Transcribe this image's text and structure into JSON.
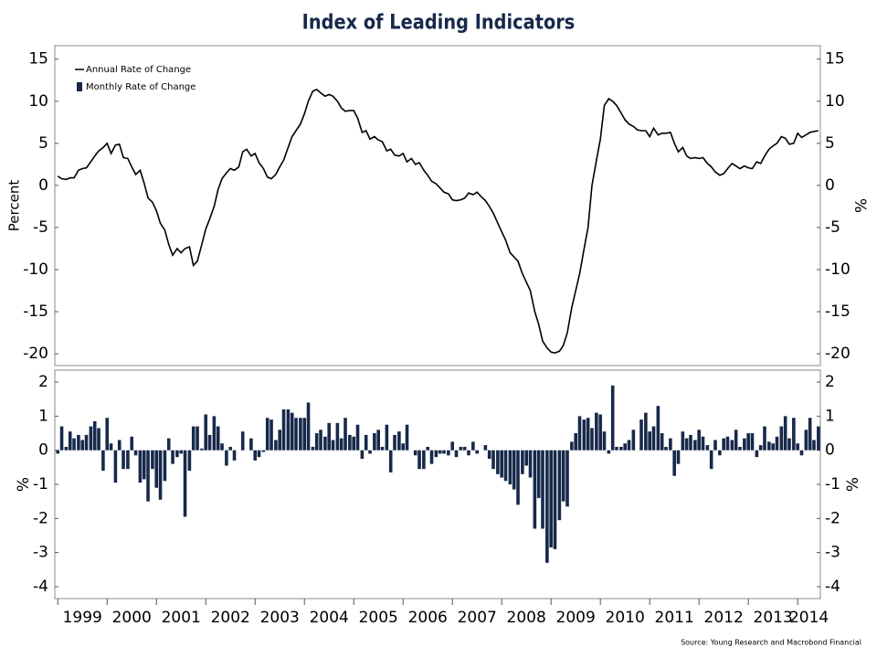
{
  "chart_data": [
    {
      "type": "line",
      "title": "Index of Leading Indicators",
      "y_label": "Percent",
      "y2_label": "%",
      "xlim": [
        1998.94,
        2014.46
      ],
      "ylim": [
        -21.4,
        16.6
      ],
      "yticks": [
        -20,
        -15,
        -10,
        -5,
        0,
        5,
        10,
        15
      ],
      "y2lim": [
        -21.4,
        16.6
      ],
      "y2ticks": [
        -20,
        -15,
        -10,
        -5,
        0,
        5,
        10,
        15
      ],
      "legend": "upper left",
      "grid": false,
      "x": [
        1999,
        1999.08,
        1999.17,
        1999.25,
        1999.33,
        1999.42,
        1999.5,
        1999.58,
        1999.67,
        1999.75,
        1999.83,
        1999.92,
        2000,
        2000.08,
        2000.17,
        2000.25,
        2000.33,
        2000.42,
        2000.5,
        2000.58,
        2000.67,
        2000.75,
        2000.83,
        2000.92,
        2001,
        2001.08,
        2001.17,
        2001.25,
        2001.33,
        2001.42,
        2001.5,
        2001.58,
        2001.67,
        2001.75,
        2001.83,
        2001.92,
        2002,
        2002.08,
        2002.17,
        2002.25,
        2002.33,
        2002.42,
        2002.5,
        2002.58,
        2002.67,
        2002.75,
        2002.83,
        2002.92,
        2003,
        2003.08,
        2003.17,
        2003.25,
        2003.33,
        2003.42,
        2003.5,
        2003.58,
        2003.67,
        2003.75,
        2003.83,
        2003.92,
        2004,
        2004.08,
        2004.17,
        2004.25,
        2004.33,
        2004.42,
        2004.5,
        2004.58,
        2004.67,
        2004.75,
        2004.83,
        2004.92,
        2005,
        2005.08,
        2005.17,
        2005.25,
        2005.33,
        2005.42,
        2005.5,
        2005.58,
        2005.67,
        2005.75,
        2005.83,
        2005.92,
        2006,
        2006.08,
        2006.17,
        2006.25,
        2006.33,
        2006.42,
        2006.5,
        2006.58,
        2006.67,
        2006.75,
        2006.83,
        2006.92,
        2007,
        2007.08,
        2007.17,
        2007.25,
        2007.33,
        2007.42,
        2007.5,
        2007.58,
        2007.67,
        2007.75,
        2007.83,
        2007.92,
        2008,
        2008.08,
        2008.17,
        2008.25,
        2008.33,
        2008.42,
        2008.5,
        2008.58,
        2008.67,
        2008.75,
        2008.83,
        2008.92,
        2009,
        2009.08,
        2009.17,
        2009.25,
        2009.33,
        2009.42,
        2009.5,
        2009.58,
        2009.67,
        2009.75,
        2009.83,
        2009.92,
        2010,
        2010.08,
        2010.17,
        2010.25,
        2010.33,
        2010.42,
        2010.5,
        2010.58,
        2010.67,
        2010.75,
        2010.83,
        2010.92,
        2011,
        2011.08,
        2011.17,
        2011.25,
        2011.33,
        2011.42,
        2011.5,
        2011.58,
        2011.67,
        2011.75,
        2011.83,
        2011.92,
        2012,
        2012.08,
        2012.17,
        2012.25,
        2012.33,
        2012.42,
        2012.5,
        2012.58,
        2012.67,
        2012.75,
        2012.83,
        2012.92,
        2013,
        2013.08,
        2013.17,
        2013.25,
        2013.33,
        2013.42,
        2013.5,
        2013.58,
        2013.67,
        2013.75,
        2013.83,
        2013.92,
        2014,
        2014.08,
        2014.17,
        2014.25,
        2014.33,
        2014.42
      ],
      "series": [
        {
          "name": "Annual Rate of Change",
          "color": "#000000",
          "values": [
            1.1,
            0.8,
            0.7,
            0.9,
            0.9,
            1.8,
            2.0,
            2.1,
            2.8,
            3.5,
            4.1,
            4.5,
            5.0,
            3.8,
            4.8,
            4.9,
            3.3,
            3.2,
            2.2,
            1.3,
            1.8,
            0.3,
            -1.5,
            -2.0,
            -3.0,
            -4.5,
            -5.3,
            -7.0,
            -8.3,
            -7.5,
            -8.0,
            -7.5,
            -7.3,
            -9.5,
            -9.0,
            -7.0,
            -5.2,
            -4.0,
            -2.5,
            -0.5,
            0.8,
            1.5,
            2.0,
            1.8,
            2.2,
            4.0,
            4.3,
            3.5,
            3.8,
            2.7,
            2.0,
            1.0,
            0.8,
            1.3,
            2.2,
            3.0,
            4.5,
            5.8,
            6.5,
            7.3,
            8.5,
            10.0,
            11.2,
            11.4,
            11.0,
            10.6,
            10.8,
            10.6,
            10.0,
            9.2,
            8.8,
            8.9,
            8.9,
            8.0,
            6.3,
            6.5,
            5.5,
            5.8,
            5.4,
            5.2,
            4.1,
            4.3,
            3.6,
            3.5,
            3.8,
            2.8,
            3.2,
            2.5,
            2.7,
            1.8,
            1.2,
            0.5,
            0.2,
            -0.3,
            -0.8,
            -1.0,
            -1.7,
            -1.8,
            -1.7,
            -1.5,
            -0.9,
            -1.1,
            -0.8,
            -1.3,
            -1.8,
            -2.5,
            -3.3,
            -4.5,
            -5.5,
            -6.5,
            -8.0,
            -8.5,
            -9.0,
            -10.5,
            -11.5,
            -12.5,
            -15.0,
            -16.5,
            -18.5,
            -19.3,
            -19.8,
            -19.9,
            -19.7,
            -19.0,
            -17.5,
            -14.5,
            -12.5,
            -10.5,
            -7.5,
            -5.0,
            0.0,
            3.0,
            5.5,
            9.5,
            10.3,
            10.0,
            9.5,
            8.6,
            7.8,
            7.3,
            7.0,
            6.6,
            6.5,
            6.5,
            5.8,
            6.8,
            6.0,
            6.2,
            6.2,
            6.3,
            5.0,
            4.0,
            4.5,
            3.5,
            3.2,
            3.3,
            3.2,
            3.3,
            2.6,
            2.2,
            1.6,
            1.2,
            1.4,
            2.0,
            2.6,
            2.3,
            2.0,
            2.3,
            2.1,
            2.0,
            2.8,
            2.6,
            3.5,
            4.3,
            4.7,
            5.0,
            5.8,
            5.6,
            4.9,
            5.0,
            6.2,
            5.7,
            6.0,
            6.3,
            6.4,
            6.5
          ]
        }
      ]
    },
    {
      "type": "bar",
      "y_label": "%",
      "y2_label": "%",
      "source": "Source: Young Research and Macrobond Financial",
      "xlim": [
        1998.94,
        2014.46
      ],
      "xticks": [
        1999,
        2000,
        2001,
        2002,
        2003,
        2004,
        2005,
        2006,
        2007,
        2008,
        2009,
        2010,
        2011,
        2012,
        2013,
        2014
      ],
      "ylim": [
        -4.35,
        2.35
      ],
      "yticks": [
        -4,
        -3,
        -2,
        -1,
        0,
        1,
        2
      ],
      "y2lim": [
        -4.35,
        2.35
      ],
      "y2ticks": [
        -4,
        -3,
        -2,
        -1,
        0,
        1,
        2
      ],
      "grid": false,
      "x": [
        1999,
        1999.08,
        1999.17,
        1999.25,
        1999.33,
        1999.42,
        1999.5,
        1999.58,
        1999.67,
        1999.75,
        1999.83,
        1999.92,
        2000,
        2000.08,
        2000.17,
        2000.25,
        2000.33,
        2000.42,
        2000.5,
        2000.58,
        2000.67,
        2000.75,
        2000.83,
        2000.92,
        2001,
        2001.08,
        2001.17,
        2001.25,
        2001.33,
        2001.42,
        2001.5,
        2001.58,
        2001.67,
        2001.75,
        2001.83,
        2001.92,
        2002,
        2002.08,
        2002.17,
        2002.25,
        2002.33,
        2002.42,
        2002.5,
        2002.58,
        2002.67,
        2002.75,
        2002.83,
        2002.92,
        2003,
        2003.08,
        2003.17,
        2003.25,
        2003.33,
        2003.42,
        2003.5,
        2003.58,
        2003.67,
        2003.75,
        2003.83,
        2003.92,
        2004,
        2004.08,
        2004.17,
        2004.25,
        2004.33,
        2004.42,
        2004.5,
        2004.58,
        2004.67,
        2004.75,
        2004.83,
        2004.92,
        2005,
        2005.08,
        2005.17,
        2005.25,
        2005.33,
        2005.42,
        2005.5,
        2005.58,
        2005.67,
        2005.75,
        2005.83,
        2005.92,
        2006,
        2006.08,
        2006.17,
        2006.25,
        2006.33,
        2006.42,
        2006.5,
        2006.58,
        2006.67,
        2006.75,
        2006.83,
        2006.92,
        2007,
        2007.08,
        2007.17,
        2007.25,
        2007.33,
        2007.42,
        2007.5,
        2007.58,
        2007.67,
        2007.75,
        2007.83,
        2007.92,
        2008,
        2008.08,
        2008.17,
        2008.25,
        2008.33,
        2008.42,
        2008.5,
        2008.58,
        2008.67,
        2008.75,
        2008.83,
        2008.92,
        2009,
        2009.08,
        2009.17,
        2009.25,
        2009.33,
        2009.42,
        2009.5,
        2009.58,
        2009.67,
        2009.75,
        2009.83,
        2009.92,
        2010,
        2010.08,
        2010.17,
        2010.25,
        2010.33,
        2010.42,
        2010.5,
        2010.58,
        2010.67,
        2010.75,
        2010.83,
        2010.92,
        2011,
        2011.08,
        2011.17,
        2011.25,
        2011.33,
        2011.42,
        2011.5,
        2011.58,
        2011.67,
        2011.75,
        2011.83,
        2011.92,
        2012,
        2012.08,
        2012.17,
        2012.25,
        2012.33,
        2012.42,
        2012.5,
        2012.58,
        2012.67,
        2012.75,
        2012.83,
        2012.92,
        2013,
        2013.08,
        2013.17,
        2013.25,
        2013.33,
        2013.42,
        2013.5,
        2013.58,
        2013.67,
        2013.75,
        2013.83,
        2013.92,
        2014,
        2014.08,
        2014.17,
        2014.25,
        2014.33,
        2014.42
      ],
      "series": [
        {
          "name": "Monthly Rate of Change",
          "color": "#17294a",
          "values": [
            -0.1,
            0.7,
            0.1,
            0.55,
            0.35,
            0.45,
            0.3,
            0.45,
            0.7,
            0.85,
            0.65,
            -0.6,
            0.95,
            0.2,
            -0.95,
            0.3,
            -0.55,
            -0.55,
            0.4,
            -0.15,
            -0.95,
            -0.85,
            -1.5,
            -0.55,
            -1.1,
            -1.45,
            -0.9,
            0.35,
            -0.4,
            -0.2,
            -0.1,
            -1.95,
            -0.6,
            0.7,
            0.7,
            0.05,
            1.05,
            0.45,
            1.0,
            0.7,
            0.2,
            -0.45,
            0.1,
            -0.3,
            0.0,
            0.55,
            0.0,
            0.35,
            -0.3,
            -0.2,
            -0.05,
            0.95,
            0.9,
            0.3,
            0.6,
            1.2,
            1.2,
            1.1,
            0.95,
            0.95,
            0.95,
            1.4,
            0.1,
            0.5,
            0.6,
            0.4,
            0.8,
            0.3,
            0.8,
            0.35,
            0.95,
            0.45,
            0.4,
            0.75,
            -0.25,
            0.45,
            -0.1,
            0.5,
            0.6,
            0.1,
            0.75,
            -0.65,
            0.45,
            0.55,
            0.2,
            0.75,
            0.0,
            -0.15,
            -0.55,
            -0.55,
            0.1,
            -0.4,
            -0.2,
            -0.1,
            -0.1,
            -0.15,
            0.25,
            -0.2,
            0.1,
            0.1,
            -0.15,
            0.25,
            -0.1,
            0.0,
            0.15,
            -0.25,
            -0.55,
            -0.7,
            -0.8,
            -0.9,
            -1.0,
            -1.15,
            -1.6,
            -0.7,
            -0.45,
            -0.8,
            -2.3,
            -1.4,
            -2.3,
            -3.3,
            -2.85,
            -2.9,
            -2.05,
            -1.5,
            -1.65,
            0.25,
            0.5,
            1.0,
            0.9,
            0.95,
            0.65,
            1.1,
            1.05,
            0.55,
            -0.1,
            1.9,
            0.1,
            0.1,
            0.2,
            0.3,
            0.6,
            0.0,
            0.9,
            1.1,
            0.55,
            0.7,
            1.3,
            0.5,
            0.1,
            0.35,
            -0.75,
            -0.4,
            0.55,
            0.35,
            0.45,
            0.3,
            0.6,
            0.4,
            0.15,
            -0.55,
            0.3,
            -0.15,
            0.35,
            0.4,
            0.3,
            0.6,
            0.1,
            0.35,
            0.5,
            0.5,
            -0.2,
            0.15,
            0.7,
            0.25,
            0.2,
            0.4,
            0.7,
            1.0,
            0.35,
            0.95,
            0.2,
            -0.15,
            0.6,
            0.95,
            0.3,
            0.7
          ]
        }
      ]
    }
  ]
}
